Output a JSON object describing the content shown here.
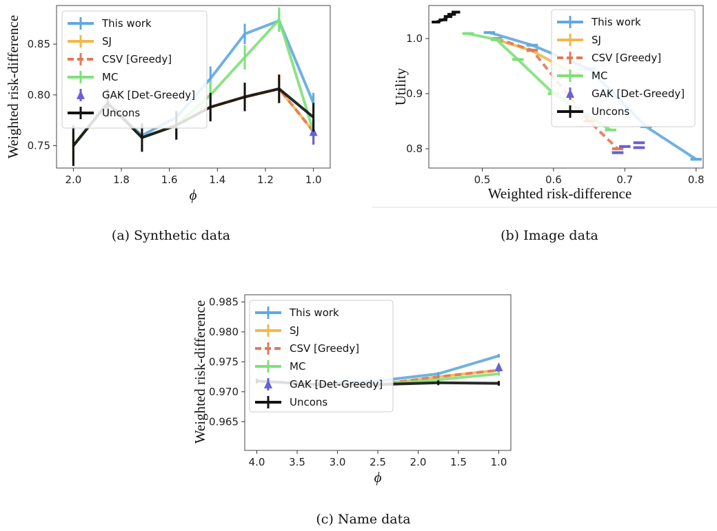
{
  "legend_labels": [
    "This work",
    "SJ",
    "CSV [Greedy]",
    "MC",
    "GAK [Det-Greedy]",
    "Uncons"
  ],
  "series_colors": {
    "This work": "#5fa8e0",
    "SJ": "#f2b84b",
    "CSV [Greedy]": "#e0795a",
    "MC": "#7fe07a",
    "GAK [Det-Greedy]": "#6a5fd6",
    "Uncons": "#111111"
  },
  "captions": {
    "a": "(a) Synthetic data",
    "b": "(b) Image data",
    "c": "(c) Name data"
  },
  "chart_data": [
    {
      "id": "a",
      "type": "line",
      "title": "",
      "xlabel": "ϕ",
      "ylabel": "Weighted risk-difference",
      "xlim": [
        2.07,
        0.93
      ],
      "ylim": [
        0.728,
        0.888
      ],
      "x_inverted": true,
      "x_ticks": [
        2.0,
        1.8,
        1.6,
        1.4,
        1.2,
        1.0
      ],
      "x_tick_labels": [
        "2.0",
        "1.8",
        "1.6",
        "1.4",
        "1.2",
        "1.0"
      ],
      "y_ticks": [
        0.75,
        0.8,
        0.85
      ],
      "y_tick_labels": [
        "0.75",
        "0.80",
        "0.85"
      ],
      "legend_position": "upper-left",
      "x": [
        2.0,
        1.857,
        1.714,
        1.571,
        1.429,
        1.286,
        1.143,
        1.0
      ],
      "series": [
        {
          "name": "This work",
          "y": [
            0.75,
            0.792,
            0.76,
            0.778,
            0.816,
            0.86,
            0.873,
            0.792
          ],
          "err": [
            0.016,
            0.014,
            0.006,
            0.006,
            0.012,
            0.01,
            0.01,
            0.01
          ]
        },
        {
          "name": "SJ",
          "y": [
            0.75,
            0.792,
            0.758,
            0.77,
            0.788,
            0.798,
            0.806,
            0.764
          ],
          "err": [
            0.016,
            0.014,
            0.012,
            0.014,
            0.014,
            0.014,
            0.014,
            0.012
          ]
        },
        {
          "name": "CSV [Greedy]",
          "y": [
            0.75,
            0.792,
            0.758,
            0.77,
            0.788,
            0.798,
            0.806,
            0.764
          ],
          "err": [
            0.016,
            0.014,
            0.012,
            0.014,
            0.014,
            0.014,
            0.014,
            0.012
          ]
        },
        {
          "name": "MC",
          "y": [
            0.75,
            0.792,
            0.758,
            0.77,
            0.8,
            0.837,
            0.874,
            0.764
          ],
          "err": [
            0.016,
            0.014,
            0.012,
            0.014,
            0.014,
            0.012,
            0.012,
            0.012
          ]
        },
        {
          "name": "GAK [Det-Greedy]",
          "y": [
            null,
            null,
            null,
            null,
            null,
            null,
            null,
            0.763
          ],
          "err": [
            0,
            0,
            0,
            0,
            0,
            0,
            0,
            0.012
          ]
        },
        {
          "name": "Uncons",
          "y": [
            0.75,
            0.792,
            0.758,
            0.77,
            0.788,
            0.798,
            0.806,
            0.778
          ],
          "err": [
            0.02,
            0.014,
            0.014,
            0.014,
            0.014,
            0.014,
            0.014,
            0.014
          ]
        }
      ]
    },
    {
      "id": "b",
      "type": "line",
      "title": "",
      "xlabel": "Weighted risk-difference",
      "ylabel": "Utility",
      "xlim": [
        0.425,
        0.81
      ],
      "ylim": [
        0.765,
        1.06
      ],
      "x_inverted": false,
      "x_ticks": [
        0.5,
        0.6,
        0.7,
        0.8
      ],
      "x_tick_labels": [
        "0.5",
        "0.6",
        "0.7",
        "0.8"
      ],
      "y_ticks": [
        0.8,
        0.9,
        1.0
      ],
      "y_tick_labels": [
        "0.8",
        "0.9",
        "1.0"
      ],
      "legend_position": "upper-right",
      "series": [
        {
          "name": "This work",
          "x": [
            0.51,
            0.57,
            0.65,
            0.73,
            0.8
          ],
          "y": [
            1.011,
            0.988,
            0.945,
            0.84,
            0.781
          ],
          "xerr": [
            0.008,
            0.008,
            0.008,
            0.008,
            0.008
          ]
        },
        {
          "name": "SJ",
          "x": [
            0.52,
            0.57,
            0.63
          ],
          "y": [
            0.998,
            0.978,
            0.935
          ],
          "xerr": [
            0.008,
            0.008,
            0.008
          ]
        },
        {
          "name": "CSV [Greedy]",
          "x": [
            0.52,
            0.57,
            0.65,
            0.69
          ],
          "y": [
            1.0,
            0.979,
            0.85,
            0.8
          ],
          "xerr": [
            0.008,
            0.008,
            0.008,
            0.008
          ]
        },
        {
          "name": "MC",
          "x": [
            0.48,
            0.52,
            0.55,
            0.6,
            0.68
          ],
          "y": [
            1.009,
            0.998,
            0.962,
            0.9,
            0.834
          ],
          "xerr": [
            0.008,
            0.008,
            0.008,
            0.008,
            0.008
          ]
        },
        {
          "name": "GAK [Det-Greedy]",
          "x": [
            0.69,
            0.7,
            0.72,
            0.72,
            0.69
          ],
          "y": [
            0.793,
            0.804,
            0.811,
            0.802,
            0.793
          ],
          "xerr": [
            0.008,
            0.008,
            0.008,
            0.008,
            0.008
          ]
        },
        {
          "name": "Uncons",
          "x": [
            0.435,
            0.445,
            0.452,
            0.457,
            0.463
          ],
          "y": [
            1.03,
            1.034,
            1.04,
            1.044,
            1.048
          ],
          "xerr": [
            0.006,
            0.006,
            0.006,
            0.006,
            0.006
          ]
        }
      ]
    },
    {
      "id": "c",
      "type": "line",
      "title": "",
      "xlabel": "ϕ",
      "ylabel": "Weighted risk-difference",
      "xlim": [
        4.15,
        0.85
      ],
      "ylim": [
        0.9602,
        0.9862
      ],
      "x_inverted": true,
      "x_ticks": [
        4.0,
        3.5,
        3.0,
        2.5,
        2.0,
        1.5,
        1.0
      ],
      "x_tick_labels": [
        "4.0",
        "3.5",
        "3.0",
        "2.5",
        "2.0",
        "1.5",
        "1.0"
      ],
      "y_ticks": [
        0.965,
        0.97,
        0.975,
        0.98,
        0.985
      ],
      "y_tick_labels": [
        "0.965",
        "0.970",
        "0.975",
        "0.980",
        "0.985"
      ],
      "legend_position": "upper-left",
      "x": [
        4.0,
        3.25,
        2.5,
        1.75,
        1.0
      ],
      "series": [
        {
          "name": "This work",
          "y": [
            0.9718,
            0.9712,
            0.9718,
            0.973,
            0.976
          ],
          "err": [
            0.0003,
            0.0003,
            0.0003,
            0.0003,
            0.0003
          ]
        },
        {
          "name": "SJ",
          "y": [
            0.9718,
            0.9712,
            0.9712,
            0.9725,
            0.9736
          ],
          "err": [
            0.0003,
            0.0003,
            0.0003,
            0.0003,
            0.0003
          ]
        },
        {
          "name": "CSV [Greedy]",
          "y": [
            0.9718,
            0.9712,
            0.9712,
            0.9725,
            0.9736
          ],
          "err": [
            0.0003,
            0.0003,
            0.0003,
            0.0003,
            0.0003
          ]
        },
        {
          "name": "MC",
          "y": [
            0.9718,
            0.9712,
            0.9712,
            0.972,
            0.973
          ],
          "err": [
            0.0003,
            0.0003,
            0.0003,
            0.0003,
            0.0003
          ]
        },
        {
          "name": "GAK [Det-Greedy]",
          "y": [
            null,
            null,
            null,
            null,
            0.974
          ],
          "err": [
            0,
            0,
            0,
            0,
            0.0004
          ]
        },
        {
          "name": "Uncons",
          "y": [
            0.9718,
            0.9712,
            0.9712,
            0.9715,
            0.9714
          ],
          "err": [
            0.0004,
            0.0004,
            0.0004,
            0.0004,
            0.0004
          ]
        }
      ]
    }
  ]
}
